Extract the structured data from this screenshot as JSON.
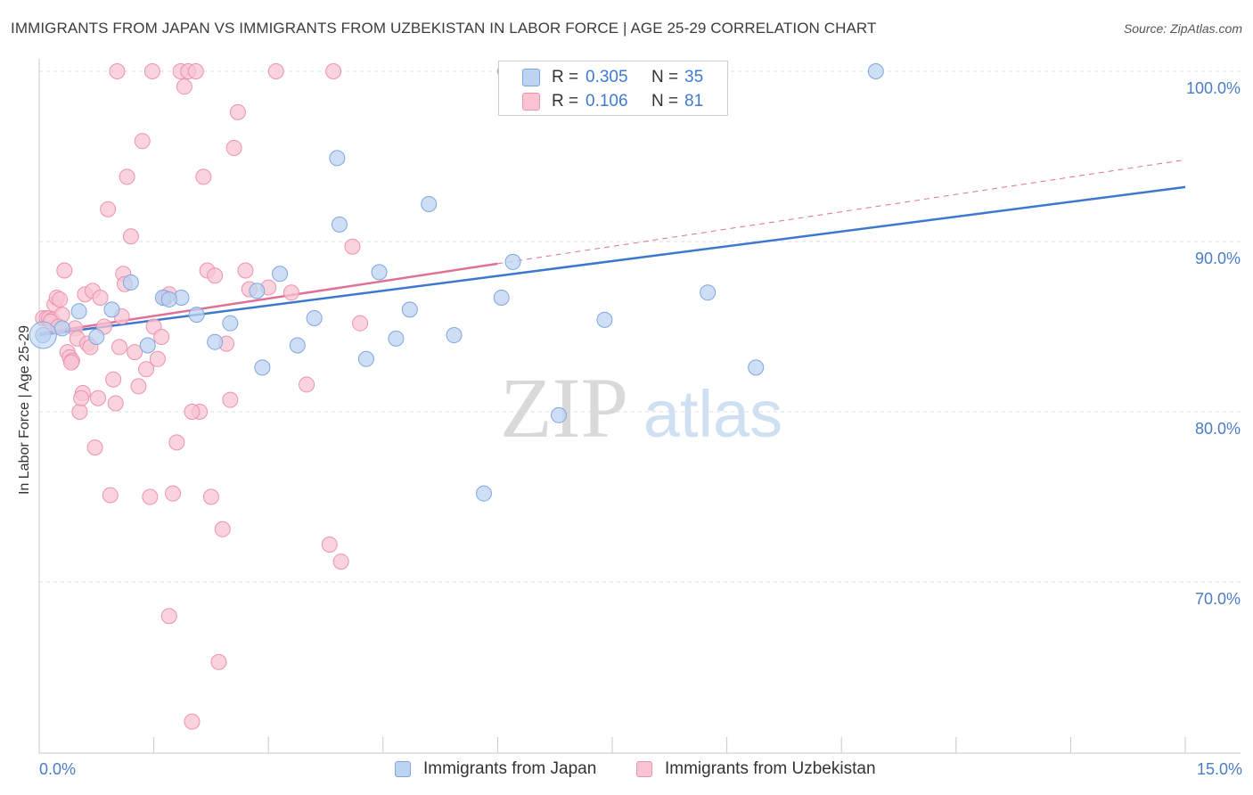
{
  "title": "IMMIGRANTS FROM JAPAN VS IMMIGRANTS FROM UZBEKISTAN IN LABOR FORCE | AGE 25-29 CORRELATION CHART",
  "source": "Source: ZipAtlas.com",
  "watermark": {
    "zip": "ZIP",
    "atlas": "atlas"
  },
  "legend": {
    "japan": {
      "r_label": "R =",
      "r_value": "0.305",
      "n_label": "N =",
      "n_value": "35"
    },
    "uzbekistan": {
      "r_label": "R =",
      "r_value": "0.106",
      "n_label": "N =",
      "n_value": "81"
    }
  },
  "colors": {
    "japan_fill": "#bcd3f2",
    "japan_stroke": "#7fa6e0",
    "japan_line": "#3d78cf",
    "uzbek_fill": "#f8c4d2",
    "uzbek_stroke": "#ec93ae",
    "uzbek_line": "#e07098",
    "tick_label": "#4a7cc7",
    "grid": "#dddddd"
  },
  "chart_data": {
    "type": "scatter",
    "title": "IMMIGRANTS FROM JAPAN VS IMMIGRANTS FROM UZBEKISTAN IN LABOR FORCE | AGE 25-29 CORRELATION CHART",
    "xlabel": "",
    "ylabel": "In Labor Force | Age 25-29",
    "xlim": [
      0,
      15
    ],
    "ylim": [
      61,
      101.5
    ],
    "x_tick_labels": [
      "0.0%",
      "15.0%"
    ],
    "y_ticks": [
      {
        "value": 100,
        "label": "100.0%"
      },
      {
        "value": 90,
        "label": "90.0%"
      },
      {
        "value": 80,
        "label": "80.0%"
      },
      {
        "value": 70,
        "label": "70.0%"
      }
    ],
    "series": [
      {
        "name": "Immigrants from Japan",
        "points": [
          [
            0.05,
            84.5
          ],
          [
            0.3,
            84.9
          ],
          [
            0.52,
            85.9
          ],
          [
            0.75,
            84.4
          ],
          [
            0.95,
            86.0
          ],
          [
            1.2,
            87.6
          ],
          [
            1.42,
            83.9
          ],
          [
            1.62,
            86.7
          ],
          [
            1.86,
            86.7
          ],
          [
            2.06,
            85.7
          ],
          [
            2.3,
            84.1
          ],
          [
            2.5,
            85.2
          ],
          [
            2.85,
            87.1
          ],
          [
            2.92,
            82.6
          ],
          [
            3.15,
            88.1
          ],
          [
            3.38,
            83.9
          ],
          [
            3.6,
            85.5
          ],
          [
            3.9,
            94.9
          ],
          [
            3.93,
            91.0
          ],
          [
            4.28,
            83.1
          ],
          [
            4.45,
            88.2
          ],
          [
            4.67,
            84.3
          ],
          [
            4.85,
            86.0
          ],
          [
            5.1,
            92.2
          ],
          [
            5.43,
            84.5
          ],
          [
            5.82,
            75.2
          ],
          [
            6.05,
            86.7
          ],
          [
            6.2,
            88.8
          ],
          [
            6.8,
            79.8
          ],
          [
            7.4,
            85.4
          ],
          [
            8.75,
            87.0
          ],
          [
            9.38,
            82.6
          ],
          [
            10.95,
            100.0
          ],
          [
            6.1,
            100.0
          ],
          [
            1.7,
            86.6
          ]
        ]
      },
      {
        "name": "Immigrants from Uzbekistan",
        "points": [
          [
            0.05,
            85.5
          ],
          [
            0.1,
            85.5
          ],
          [
            0.13,
            85.5
          ],
          [
            0.17,
            85.4
          ],
          [
            0.2,
            86.3
          ],
          [
            0.23,
            86.7
          ],
          [
            0.27,
            86.6
          ],
          [
            0.3,
            85.7
          ],
          [
            0.33,
            88.3
          ],
          [
            0.37,
            83.5
          ],
          [
            0.4,
            83.2
          ],
          [
            0.43,
            83.0
          ],
          [
            0.47,
            84.9
          ],
          [
            0.5,
            84.3
          ],
          [
            0.53,
            80.0
          ],
          [
            0.57,
            81.1
          ],
          [
            0.6,
            86.9
          ],
          [
            0.63,
            84.0
          ],
          [
            0.67,
            83.8
          ],
          [
            0.7,
            87.1
          ],
          [
            0.73,
            77.9
          ],
          [
            0.77,
            80.8
          ],
          [
            0.8,
            86.7
          ],
          [
            0.85,
            85.0
          ],
          [
            0.9,
            91.9
          ],
          [
            0.93,
            75.1
          ],
          [
            0.97,
            81.9
          ],
          [
            1.0,
            80.5
          ],
          [
            1.05,
            83.8
          ],
          [
            1.1,
            88.1
          ],
          [
            1.12,
            87.5
          ],
          [
            1.15,
            93.8
          ],
          [
            1.2,
            90.3
          ],
          [
            1.25,
            83.5
          ],
          [
            1.3,
            81.5
          ],
          [
            1.35,
            95.9
          ],
          [
            1.4,
            82.5
          ],
          [
            1.45,
            75.0
          ],
          [
            1.5,
            85.0
          ],
          [
            1.55,
            83.1
          ],
          [
            1.6,
            84.4
          ],
          [
            1.65,
            86.7
          ],
          [
            1.7,
            68.0
          ],
          [
            1.75,
            75.2
          ],
          [
            1.8,
            78.2
          ],
          [
            1.85,
            100.0
          ],
          [
            1.9,
            99.1
          ],
          [
            1.95,
            100.0
          ],
          [
            2.0,
            61.8
          ],
          [
            2.05,
            100.0
          ],
          [
            2.1,
            80.0
          ],
          [
            2.15,
            93.8
          ],
          [
            2.2,
            88.3
          ],
          [
            2.25,
            75.0
          ],
          [
            2.3,
            88.0
          ],
          [
            2.35,
            65.3
          ],
          [
            2.4,
            73.1
          ],
          [
            2.45,
            84.0
          ],
          [
            2.5,
            80.7
          ],
          [
            2.55,
            95.5
          ],
          [
            2.6,
            97.6
          ],
          [
            2.7,
            88.3
          ],
          [
            2.75,
            87.2
          ],
          [
            3.0,
            87.3
          ],
          [
            3.1,
            100.0
          ],
          [
            3.3,
            87.0
          ],
          [
            3.5,
            81.6
          ],
          [
            3.8,
            72.2
          ],
          [
            3.85,
            100.0
          ],
          [
            3.95,
            71.2
          ],
          [
            4.1,
            89.7
          ],
          [
            4.2,
            85.2
          ],
          [
            0.42,
            82.9
          ],
          [
            0.55,
            80.8
          ],
          [
            1.08,
            85.6
          ],
          [
            0.15,
            85.3
          ],
          [
            1.48,
            100.0
          ],
          [
            1.02,
            100.0
          ],
          [
            0.25,
            85.0
          ],
          [
            2.0,
            80.0
          ],
          [
            1.7,
            86.9
          ]
        ]
      }
    ],
    "trend_lines": [
      {
        "series": "Immigrants from Japan",
        "x": [
          0.0,
          15.0
        ],
        "y": [
          84.5,
          93.2
        ],
        "style": "solid"
      },
      {
        "series": "Immigrants from Uzbekistan",
        "x": [
          0.0,
          6.0
        ],
        "y": [
          84.6,
          88.7
        ],
        "style": "solid"
      },
      {
        "series": "Immigrants from Uzbekistan",
        "x": [
          6.0,
          15.0
        ],
        "y": [
          88.7,
          94.8
        ],
        "style": "dashed"
      }
    ]
  },
  "axis": {
    "ylabel": "In Labor Force | Age 25-29",
    "x_min_label": "0.0%",
    "x_max_label": "15.0%"
  },
  "bottom_legend": {
    "japan": "Immigrants from Japan",
    "uzbekistan": "Immigrants from Uzbekistan"
  }
}
